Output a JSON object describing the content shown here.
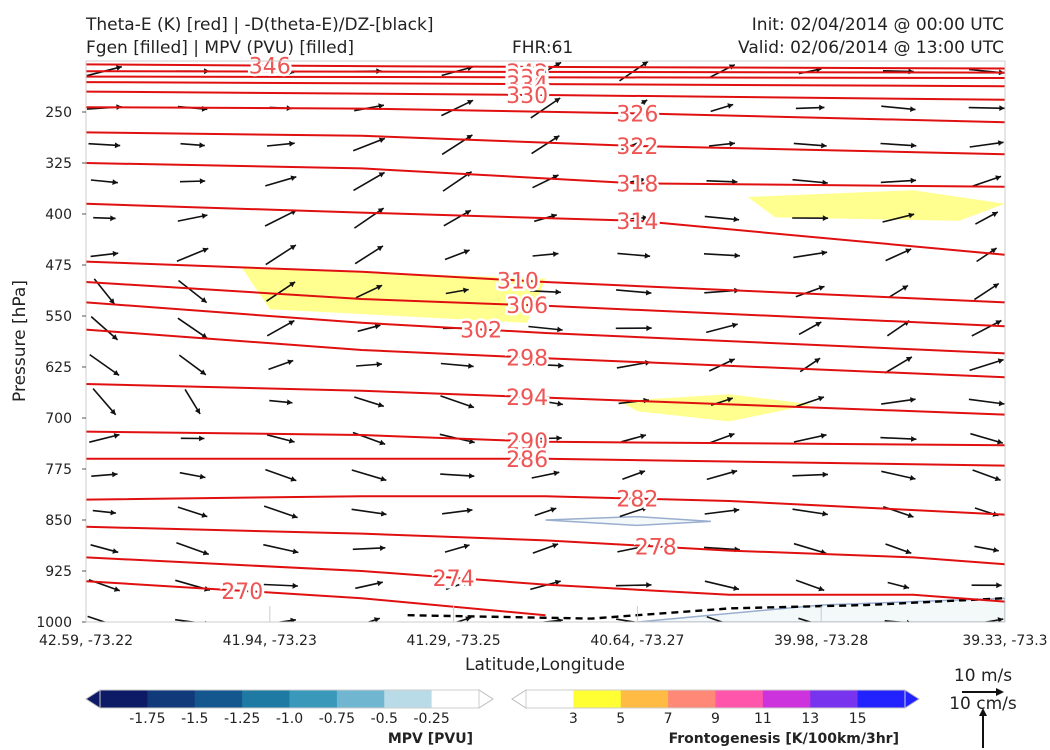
{
  "header": {
    "title_line1": "Theta-E (K) [red] | -D(theta-E)/DZ-[black]",
    "title_line2": "Fgen [filled] | MPV (PVU) [filled]",
    "fhr": "FHR:61",
    "init": "Init: 02/04/2014 @ 00:00 UTC",
    "valid": "Valid: 02/06/2014 @ 13:00 UTC"
  },
  "chart_data": {
    "type": "cross-section",
    "xlabel": "Latitude,Longitude",
    "ylabel": "Pressure [hPa]",
    "x_ticks": [
      "42.59, -73.22",
      "41.94, -73.23",
      "41.29, -73.25",
      "40.64, -73.27",
      "39.98, -73.28",
      "39.33, -73.3"
    ],
    "y_ticks": [
      250,
      325,
      400,
      475,
      550,
      625,
      700,
      775,
      850,
      925,
      1000
    ],
    "ylim": [
      1000,
      175
    ],
    "theta_e_contours": [
      {
        "label": "346",
        "pts": [
          [
            0,
            180
          ],
          [
            0.35,
            183
          ],
          [
            1,
            186
          ]
        ]
      },
      {
        "label": "342",
        "pts": [
          [
            0,
            190
          ],
          [
            1,
            192
          ]
        ]
      },
      {
        "label": "338",
        "pts": [
          [
            0,
            198
          ],
          [
            1,
            200
          ]
        ]
      },
      {
        "label": "334",
        "pts": [
          [
            0,
            206
          ],
          [
            0.5,
            209
          ],
          [
            1,
            212
          ]
        ]
      },
      {
        "label": "330",
        "pts": [
          [
            0,
            220
          ],
          [
            0.5,
            225
          ],
          [
            1,
            232
          ]
        ]
      },
      {
        "label": "326",
        "pts": [
          [
            0,
            243
          ],
          [
            0.3,
            245
          ],
          [
            0.6,
            252
          ],
          [
            1,
            265
          ]
        ]
      },
      {
        "label": "322",
        "pts": [
          [
            0,
            280
          ],
          [
            0.3,
            285
          ],
          [
            0.6,
            300
          ],
          [
            1,
            312
          ]
        ]
      },
      {
        "label": "318",
        "pts": [
          [
            0,
            325
          ],
          [
            0.3,
            333
          ],
          [
            0.6,
            355
          ],
          [
            1,
            360
          ]
        ]
      },
      {
        "label": "314",
        "pts": [
          [
            0,
            385
          ],
          [
            0.3,
            398
          ],
          [
            0.6,
            410
          ],
          [
            1,
            460
          ]
        ]
      },
      {
        "label": "310",
        "pts": [
          [
            0,
            470
          ],
          [
            0.3,
            485
          ],
          [
            0.5,
            500
          ],
          [
            1,
            530
          ]
        ]
      },
      {
        "label": "306",
        "pts": [
          [
            0,
            500
          ],
          [
            0.3,
            525
          ],
          [
            0.5,
            535
          ],
          [
            1,
            565
          ]
        ]
      },
      {
        "label": "302",
        "pts": [
          [
            0,
            530
          ],
          [
            0.3,
            560
          ],
          [
            0.5,
            575
          ],
          [
            1,
            605
          ]
        ]
      },
      {
        "label": "298",
        "pts": [
          [
            0,
            570
          ],
          [
            0.3,
            600
          ],
          [
            0.5,
            612
          ],
          [
            1,
            640
          ]
        ]
      },
      {
        "label": "294",
        "pts": [
          [
            0,
            650
          ],
          [
            0.3,
            660
          ],
          [
            0.5,
            670
          ],
          [
            1,
            695
          ]
        ]
      },
      {
        "label": "290",
        "pts": [
          [
            0,
            720
          ],
          [
            0.3,
            725
          ],
          [
            0.5,
            735
          ],
          [
            1,
            740
          ]
        ]
      },
      {
        "label": "286",
        "pts": [
          [
            0,
            760
          ],
          [
            0.5,
            760
          ],
          [
            1,
            770
          ]
        ]
      },
      {
        "label": "282",
        "pts": [
          [
            0,
            820
          ],
          [
            0.3,
            815
          ],
          [
            0.5,
            815
          ],
          [
            0.7,
            822
          ],
          [
            1,
            842
          ]
        ]
      },
      {
        "label": "278",
        "pts": [
          [
            0,
            860
          ],
          [
            0.3,
            870
          ],
          [
            0.5,
            880
          ],
          [
            0.7,
            895
          ],
          [
            0.9,
            905
          ],
          [
            1,
            915
          ]
        ]
      },
      {
        "label": "274",
        "pts": [
          [
            0,
            905
          ],
          [
            0.3,
            925
          ],
          [
            0.5,
            945
          ],
          [
            0.7,
            960
          ],
          [
            0.9,
            960
          ],
          [
            1,
            970
          ]
        ]
      },
      {
        "label": "270",
        "pts": [
          [
            0,
            940
          ],
          [
            0.3,
            965
          ],
          [
            0.5,
            990
          ]
        ]
      }
    ],
    "fgen_filled": [
      {
        "value": 3,
        "pts": [
          [
            0.17,
            480
          ],
          [
            0.5,
            495
          ],
          [
            0.48,
            560
          ],
          [
            0.2,
            540
          ]
        ]
      },
      {
        "value": 3,
        "pts": [
          [
            0.72,
            375
          ],
          [
            0.9,
            365
          ],
          [
            1,
            385
          ],
          [
            0.95,
            410
          ],
          [
            0.75,
            405
          ]
        ]
      },
      {
        "value": 3,
        "pts": [
          [
            0.58,
            675
          ],
          [
            0.7,
            665
          ],
          [
            0.79,
            680
          ],
          [
            0.7,
            705
          ],
          [
            0.6,
            690
          ]
        ]
      }
    ],
    "mpv_filled": [
      {
        "value": -0.25,
        "pts": [
          [
            0.5,
            850
          ],
          [
            0.6,
            845
          ],
          [
            0.68,
            852
          ],
          [
            0.6,
            858
          ]
        ]
      },
      {
        "value": -0.25,
        "pts": [
          [
            0.6,
            1000
          ],
          [
            0.8,
            975
          ],
          [
            1,
            965
          ],
          [
            1,
            1000
          ]
        ]
      }
    ],
    "dtheta_dz_dashed": [
      [
        0.35,
        990
      ],
      [
        0.55,
        995
      ],
      [
        0.7,
        980
      ],
      [
        0.85,
        975
      ],
      [
        1,
        965
      ]
    ],
    "wind_arrows_ref": {
      "label_top": "10 m/s",
      "label_bottom": "10 cm/s"
    },
    "mpv_colorbar": {
      "label": "MPV [PVU]",
      "ticks": [
        "-1.75",
        "-1.5",
        "-1.25",
        "-1.0",
        "-0.75",
        "-0.5",
        "-0.25"
      ],
      "colors": [
        "#0d1a66",
        "#103a7a",
        "#14578f",
        "#1f7aa3",
        "#3a99bb",
        "#70b6d0",
        "#b8dbe7",
        "#ffffff"
      ]
    },
    "fgen_colorbar": {
      "label": "Frontogenesis [K/100km/3hr]",
      "ticks": [
        "3",
        "5",
        "7",
        "9",
        "11",
        "13",
        "15"
      ],
      "colors": [
        "#ffffff",
        "#ffff33",
        "#ffbb44",
        "#ff8877",
        "#ff55aa",
        "#cc33dd",
        "#7733ee",
        "#2222ff"
      ]
    }
  }
}
